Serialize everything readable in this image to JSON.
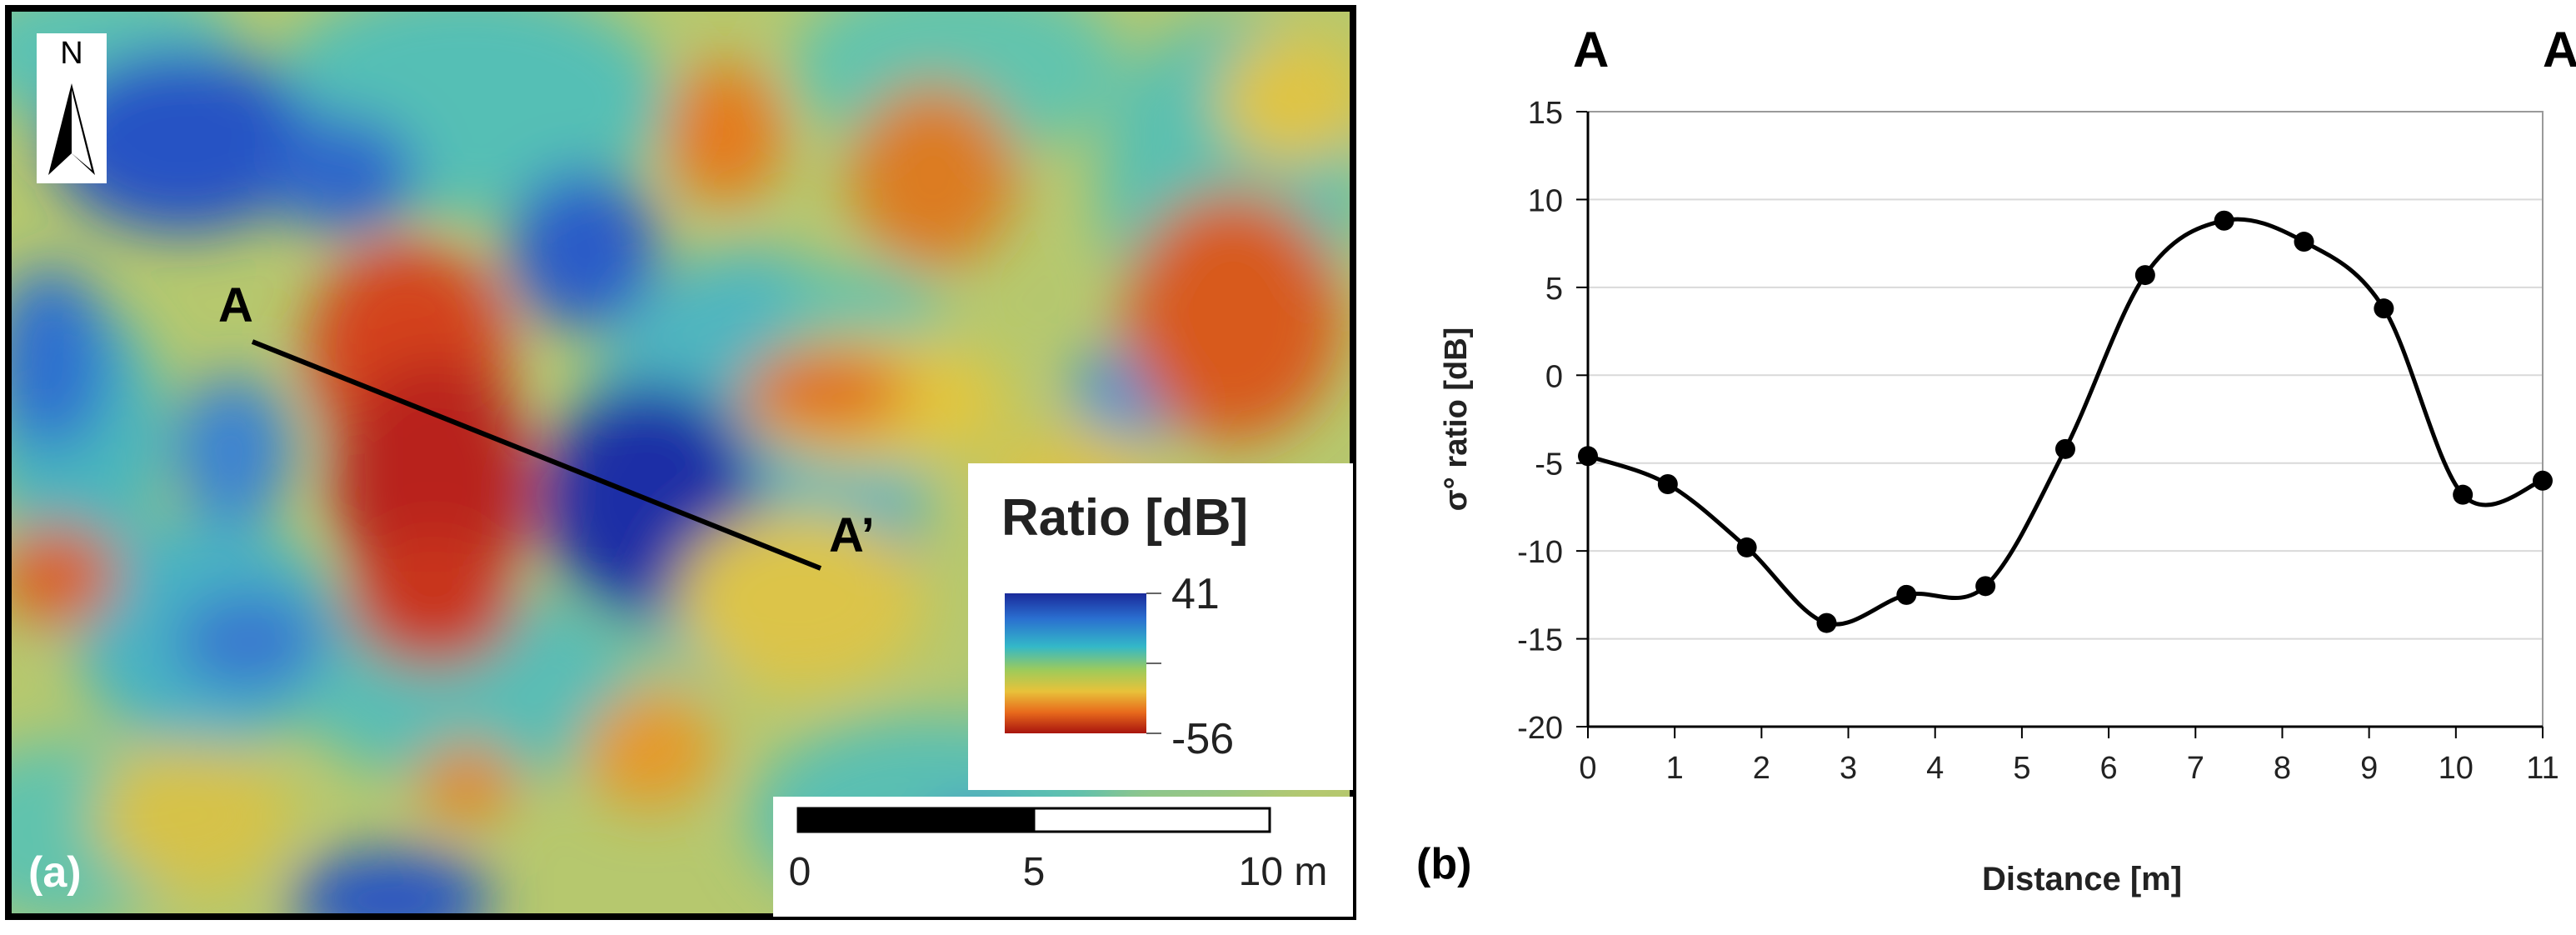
{
  "panel_a": {
    "label": "(a)",
    "north_label": "N",
    "profile_start_label": "A",
    "profile_end_label": "A’",
    "legend": {
      "title": "Ratio [dB]",
      "max_label": "41",
      "min_label": "-56",
      "colors": [
        "#1a2a9a",
        "#2a6fd0",
        "#33b8c8",
        "#9ecb5a",
        "#e8c23a",
        "#e86a1c",
        "#a8140e"
      ]
    },
    "scale_bar": {
      "label_0": "0",
      "label_mid": "5",
      "label_end": "10 m"
    }
  },
  "panel_b": {
    "label": "(b)",
    "start_label": "A",
    "end_label": "A’"
  },
  "chart_data": {
    "type": "line",
    "title": "",
    "xlabel": "Distance [m]",
    "ylabel": "σ° ratio [dB]",
    "xlim": [
      0,
      11
    ],
    "ylim": [
      -20,
      15
    ],
    "xticks": [
      0,
      1,
      2,
      3,
      4,
      5,
      6,
      7,
      8,
      9,
      10,
      11
    ],
    "yticks": [
      -20,
      -15,
      -10,
      -5,
      0,
      5,
      10,
      15
    ],
    "grid": "horizontal",
    "series": [
      {
        "name": "σ° ratio",
        "x": [
          0,
          0.92,
          1.83,
          2.75,
          3.67,
          4.58,
          5.5,
          6.42,
          7.33,
          8.25,
          9.17,
          10.08,
          11
        ],
        "values": [
          -4.6,
          -6.2,
          -9.8,
          -14.1,
          -12.5,
          -12.0,
          -4.2,
          5.7,
          8.8,
          7.6,
          3.8,
          -6.8,
          -6.0
        ]
      }
    ]
  }
}
